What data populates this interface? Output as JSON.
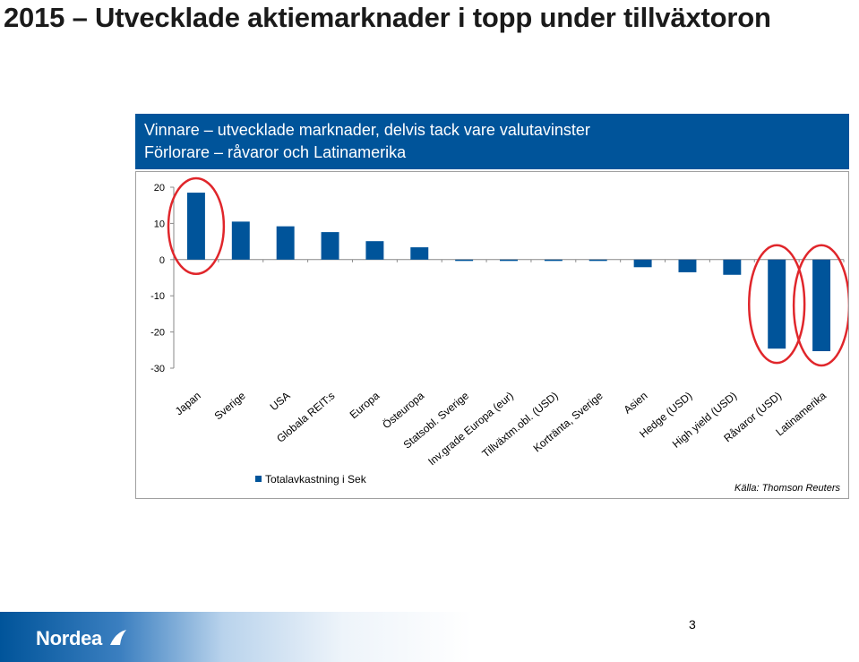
{
  "slide": {
    "title": "2015 – Utvecklade aktiemarknader i topp under tillväxtoron",
    "page_number": "3"
  },
  "banner": {
    "line1": "Vinnare – utvecklade marknader, delvis tack vare valutavinster",
    "line2": "Förlorare – råvaror och Latinamerika",
    "color": "#00549a"
  },
  "chart_data": {
    "type": "bar",
    "categories": [
      "Japan",
      "Sverige",
      "USA",
      "Globala REIT:s",
      "Europa",
      "Östeuropa",
      "Statsobl. Sverige",
      "Inv.grade Europa (eur)",
      "Tillväxtm.obl. (USD)",
      "Kortränta, Sverige",
      "Asien",
      "Hedge (USD)",
      "High yield (USD)",
      "Råvaror (USD)",
      "Latinamerika"
    ],
    "series": [
      {
        "name": "Totalavkastning i Sek",
        "values": [
          18.5,
          10.5,
          9.2,
          7.6,
          5.1,
          3.4,
          -0.3,
          -0.3,
          -0.3,
          -0.2,
          -2.1,
          -3.5,
          -4.2,
          -24.6,
          -25.3
        ],
        "color": "#00549a"
      }
    ],
    "ylim": [
      -30,
      20
    ],
    "yticks": [
      "20",
      "10",
      "0",
      "-10",
      "-20",
      "-30"
    ],
    "highlighted": [
      "Japan",
      "Råvaror (USD)",
      "Latinamerika"
    ],
    "highlight_color": "#e0262b",
    "grid": false,
    "legend_position": "bottom-left",
    "source": "Källa: Thomson Reuters"
  },
  "brand": {
    "name": "Nordea",
    "colors": {
      "primary": "#00549a"
    }
  }
}
